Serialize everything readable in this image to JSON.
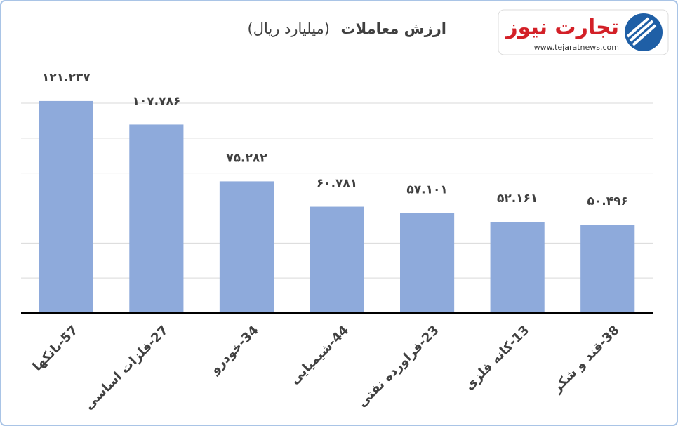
{
  "chart_data": {
    "type": "bar",
    "title": "ارزش معاملات",
    "subtitle": "(میلیارد ریال)",
    "categories": [
      "57-بانکها",
      "27-فلزات اساسی",
      "34-خودرو",
      "44-شیمیایی",
      "23-فراورده نفتی",
      "13-کانه فلزی",
      "38-قند و شکر"
    ],
    "values": [
      121.237,
      107.786,
      75.282,
      60.781,
      57.101,
      52.161,
      50.496
    ],
    "value_labels": [
      "۱۲۱.۲۳۷",
      "۱۰۷.۷۸۶",
      "۷۵.۲۸۲",
      "۶۰.۷۸۱",
      "۵۷.۱۰۱",
      "۵۲.۱۶۱",
      "۵۰.۴۹۶"
    ],
    "color": "#8eaadb",
    "ylim": [
      0,
      120
    ],
    "yticks": [
      0,
      20,
      40,
      60,
      80,
      100,
      120
    ],
    "grid": true
  },
  "logo": {
    "name": "تجارت نیوز",
    "url": "www.tejaratnews.com"
  }
}
